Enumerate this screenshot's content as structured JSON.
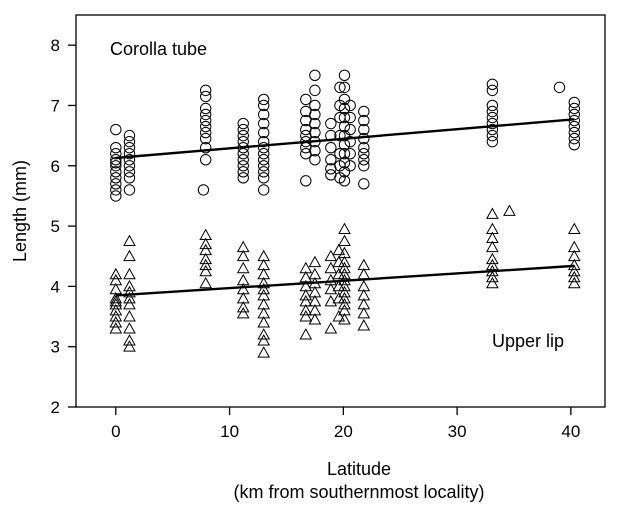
{
  "chart_data": {
    "type": "scatter",
    "xlabel": "Latitude",
    "xlabel_sub": "(km from southernmost locality)",
    "ylabel": "Length (mm)",
    "xlim": [
      -3.5,
      43
    ],
    "ylim": [
      2,
      8.5
    ],
    "xticks": [
      0,
      10,
      20,
      30,
      40
    ],
    "yticks": [
      2,
      3,
      4,
      5,
      6,
      7,
      8
    ],
    "annotations": {
      "corolla": "Corolla tube",
      "upper_lip": "Upper lip"
    },
    "series": [
      {
        "marker": "circle",
        "trend": {
          "x": [
            0,
            40.3
          ],
          "y": [
            6.13,
            6.77
          ]
        },
        "points": [
          [
            0,
            6.6
          ],
          [
            0,
            6.3
          ],
          [
            0,
            6.2
          ],
          [
            0,
            6.1
          ],
          [
            0,
            6.05
          ],
          [
            0,
            6.0
          ],
          [
            0,
            5.9
          ],
          [
            0,
            5.8
          ],
          [
            0,
            5.7
          ],
          [
            0,
            5.6
          ],
          [
            0,
            5.5
          ],
          [
            1.2,
            6.5
          ],
          [
            1.2,
            6.4
          ],
          [
            1.2,
            6.3
          ],
          [
            1.2,
            6.2
          ],
          [
            1.2,
            6.1
          ],
          [
            1.2,
            6.0
          ],
          [
            1.2,
            5.9
          ],
          [
            1.2,
            5.8
          ],
          [
            1.2,
            5.6
          ],
          [
            7.9,
            7.25
          ],
          [
            7.9,
            7.15
          ],
          [
            7.9,
            6.95
          ],
          [
            7.9,
            6.85
          ],
          [
            7.9,
            6.75
          ],
          [
            7.9,
            6.65
          ],
          [
            7.9,
            6.55
          ],
          [
            7.9,
            6.45
          ],
          [
            7.9,
            6.3
          ],
          [
            7.9,
            6.1
          ],
          [
            7.7,
            5.6
          ],
          [
            11.2,
            6.7
          ],
          [
            11.2,
            6.6
          ],
          [
            11.2,
            6.5
          ],
          [
            11.2,
            6.4
          ],
          [
            11.2,
            6.3
          ],
          [
            11.2,
            6.2
          ],
          [
            11.2,
            6.1
          ],
          [
            11.2,
            6.0
          ],
          [
            11.2,
            5.9
          ],
          [
            11.2,
            5.8
          ],
          [
            13.0,
            7.1
          ],
          [
            13.0,
            7.0
          ],
          [
            13.0,
            6.85
          ],
          [
            13.0,
            6.7
          ],
          [
            13.0,
            6.55
          ],
          [
            13.0,
            6.4
          ],
          [
            13.0,
            6.3
          ],
          [
            13.0,
            6.2
          ],
          [
            13.0,
            6.1
          ],
          [
            13.0,
            6.0
          ],
          [
            13.0,
            5.9
          ],
          [
            13.0,
            5.8
          ],
          [
            13.0,
            5.6
          ],
          [
            16.7,
            7.1
          ],
          [
            16.7,
            6.9
          ],
          [
            16.7,
            6.75
          ],
          [
            16.7,
            6.6
          ],
          [
            16.7,
            6.5
          ],
          [
            16.7,
            6.4
          ],
          [
            16.7,
            6.3
          ],
          [
            16.7,
            6.2
          ],
          [
            16.7,
            5.75
          ],
          [
            17.5,
            7.5
          ],
          [
            17.5,
            7.25
          ],
          [
            17.5,
            7.0
          ],
          [
            17.5,
            6.85
          ],
          [
            17.5,
            6.7
          ],
          [
            17.5,
            6.55
          ],
          [
            17.5,
            6.4
          ],
          [
            17.5,
            6.25
          ],
          [
            17.5,
            6.1
          ],
          [
            18.9,
            6.7
          ],
          [
            18.9,
            6.5
          ],
          [
            18.9,
            6.3
          ],
          [
            18.9,
            6.1
          ],
          [
            18.9,
            5.95
          ],
          [
            18.9,
            5.85
          ],
          [
            19.7,
            7.3
          ],
          [
            19.7,
            7.0
          ],
          [
            19.7,
            6.8
          ],
          [
            19.7,
            6.5
          ],
          [
            19.7,
            6.2
          ],
          [
            19.7,
            6.0
          ],
          [
            19.7,
            5.8
          ],
          [
            20.1,
            7.5
          ],
          [
            20.1,
            7.3
          ],
          [
            20.1,
            7.1
          ],
          [
            20.1,
            6.95
          ],
          [
            20.1,
            6.8
          ],
          [
            20.1,
            6.65
          ],
          [
            20.1,
            6.5
          ],
          [
            20.1,
            6.35
          ],
          [
            20.1,
            6.2
          ],
          [
            20.1,
            6.05
          ],
          [
            20.1,
            5.9
          ],
          [
            20.1,
            5.75
          ],
          [
            20.6,
            7.0
          ],
          [
            20.6,
            6.8
          ],
          [
            20.6,
            6.6
          ],
          [
            20.6,
            6.4
          ],
          [
            20.6,
            6.2
          ],
          [
            20.6,
            6.0
          ],
          [
            21.8,
            6.9
          ],
          [
            21.8,
            6.75
          ],
          [
            21.8,
            6.6
          ],
          [
            21.8,
            6.45
          ],
          [
            21.8,
            6.3
          ],
          [
            21.8,
            6.2
          ],
          [
            21.8,
            6.1
          ],
          [
            21.8,
            6.0
          ],
          [
            21.8,
            5.7
          ],
          [
            33.1,
            7.35
          ],
          [
            33.1,
            7.25
          ],
          [
            33.1,
            7.0
          ],
          [
            33.1,
            6.9
          ],
          [
            33.1,
            6.8
          ],
          [
            33.1,
            6.7
          ],
          [
            33.1,
            6.6
          ],
          [
            33.1,
            6.5
          ],
          [
            33.1,
            6.4
          ],
          [
            39.0,
            7.3
          ],
          [
            40.3,
            7.05
          ],
          [
            40.3,
            6.95
          ],
          [
            40.3,
            6.85
          ],
          [
            40.3,
            6.75
          ],
          [
            40.3,
            6.65
          ],
          [
            40.3,
            6.55
          ],
          [
            40.3,
            6.45
          ],
          [
            40.3,
            6.35
          ]
        ]
      },
      {
        "marker": "triangle",
        "trend": {
          "x": [
            0,
            40.3
          ],
          "y": [
            3.85,
            4.34
          ]
        },
        "points": [
          [
            0,
            4.2
          ],
          [
            0,
            4.1
          ],
          [
            0,
            3.95
          ],
          [
            0,
            3.8
          ],
          [
            0,
            3.75
          ],
          [
            0,
            3.7
          ],
          [
            0,
            3.6
          ],
          [
            0,
            3.5
          ],
          [
            0,
            3.4
          ],
          [
            0,
            3.3
          ],
          [
            1.2,
            4.75
          ],
          [
            1.2,
            4.5
          ],
          [
            1.2,
            4.2
          ],
          [
            1.2,
            4.0
          ],
          [
            1.2,
            3.9
          ],
          [
            1.2,
            3.8
          ],
          [
            1.2,
            3.7
          ],
          [
            1.2,
            3.5
          ],
          [
            1.2,
            3.3
          ],
          [
            1.2,
            3.1
          ],
          [
            1.2,
            3.0
          ],
          [
            7.9,
            4.85
          ],
          [
            7.9,
            4.7
          ],
          [
            7.9,
            4.6
          ],
          [
            7.9,
            4.45
          ],
          [
            7.9,
            4.35
          ],
          [
            7.9,
            4.25
          ],
          [
            7.9,
            4.05
          ],
          [
            11.2,
            4.65
          ],
          [
            11.2,
            4.5
          ],
          [
            11.2,
            4.3
          ],
          [
            11.2,
            4.1
          ],
          [
            11.2,
            3.95
          ],
          [
            11.2,
            3.8
          ],
          [
            11.2,
            3.65
          ],
          [
            11.2,
            3.55
          ],
          [
            13.0,
            4.5
          ],
          [
            13.0,
            4.35
          ],
          [
            13.0,
            4.2
          ],
          [
            13.0,
            4.05
          ],
          [
            13.0,
            3.95
          ],
          [
            13.0,
            3.85
          ],
          [
            13.0,
            3.7
          ],
          [
            13.0,
            3.55
          ],
          [
            13.0,
            3.4
          ],
          [
            13.0,
            3.2
          ],
          [
            13.0,
            3.1
          ],
          [
            13.0,
            2.9
          ],
          [
            16.7,
            4.3
          ],
          [
            16.7,
            4.15
          ],
          [
            16.7,
            4.0
          ],
          [
            16.7,
            3.85
          ],
          [
            16.7,
            3.75
          ],
          [
            16.7,
            3.6
          ],
          [
            16.7,
            3.5
          ],
          [
            16.7,
            3.2
          ],
          [
            17.5,
            4.4
          ],
          [
            17.5,
            4.2
          ],
          [
            17.5,
            4.05
          ],
          [
            17.5,
            3.9
          ],
          [
            17.5,
            3.75
          ],
          [
            17.5,
            3.6
          ],
          [
            17.5,
            3.45
          ],
          [
            18.9,
            4.5
          ],
          [
            18.9,
            4.3
          ],
          [
            18.9,
            4.1
          ],
          [
            18.9,
            3.95
          ],
          [
            18.9,
            3.75
          ],
          [
            18.9,
            3.3
          ],
          [
            19.6,
            4.6
          ],
          [
            19.6,
            4.4
          ],
          [
            19.6,
            4.2
          ],
          [
            19.6,
            4.0
          ],
          [
            19.6,
            3.8
          ],
          [
            19.6,
            3.5
          ],
          [
            20.1,
            4.95
          ],
          [
            20.1,
            4.75
          ],
          [
            20.1,
            4.55
          ],
          [
            20.1,
            4.4
          ],
          [
            20.1,
            4.3
          ],
          [
            20.1,
            4.2
          ],
          [
            20.1,
            4.1
          ],
          [
            20.1,
            4.0
          ],
          [
            20.1,
            3.9
          ],
          [
            20.1,
            3.8
          ],
          [
            20.1,
            3.7
          ],
          [
            20.1,
            3.6
          ],
          [
            20.1,
            3.45
          ],
          [
            21.8,
            4.35
          ],
          [
            21.8,
            4.2
          ],
          [
            21.8,
            4.0
          ],
          [
            21.8,
            3.85
          ],
          [
            21.8,
            3.7
          ],
          [
            21.8,
            3.55
          ],
          [
            21.8,
            3.35
          ],
          [
            33.1,
            5.2
          ],
          [
            33.1,
            4.95
          ],
          [
            33.1,
            4.8
          ],
          [
            33.1,
            4.65
          ],
          [
            33.1,
            4.45
          ],
          [
            33.1,
            4.35
          ],
          [
            33.1,
            4.25
          ],
          [
            33.1,
            4.15
          ],
          [
            33.1,
            4.05
          ],
          [
            34.6,
            5.25
          ],
          [
            40.3,
            4.95
          ],
          [
            40.3,
            4.65
          ],
          [
            40.3,
            4.5
          ],
          [
            40.3,
            4.35
          ],
          [
            40.3,
            4.25
          ],
          [
            40.3,
            4.15
          ],
          [
            40.3,
            4.05
          ]
        ]
      }
    ]
  }
}
